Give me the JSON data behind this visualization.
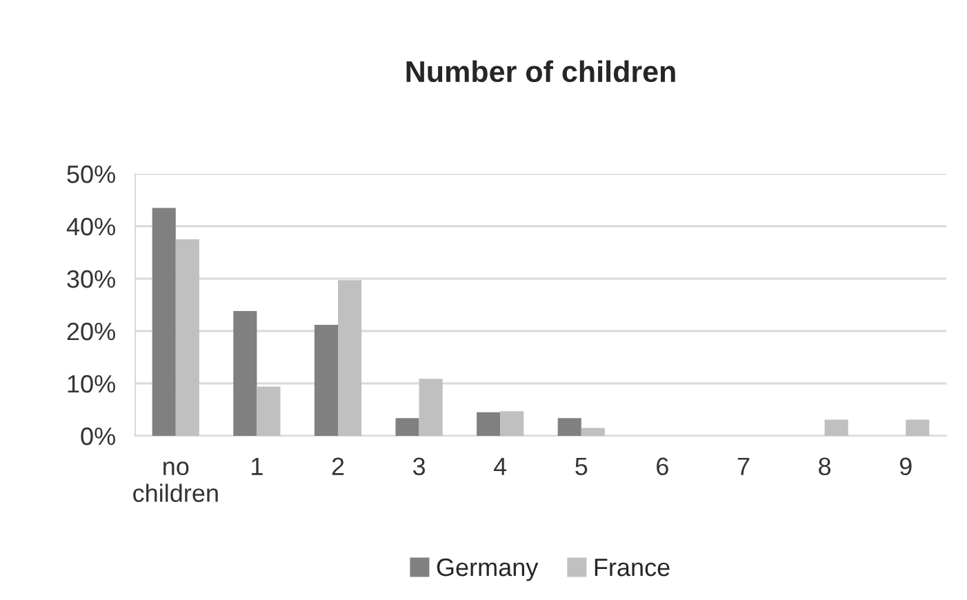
{
  "chart_data": {
    "type": "bar",
    "title": "Number of children",
    "categories": [
      "no\nchildren",
      "1",
      "2",
      "3",
      "4",
      "5",
      "6",
      "7",
      "8",
      "9"
    ],
    "series": [
      {
        "name": "Germany",
        "color": "#808080",
        "values": [
          43.5,
          23.8,
          21.2,
          3.4,
          4.5,
          3.4,
          null,
          null,
          null,
          null
        ]
      },
      {
        "name": "France",
        "color": "#c0c0c0",
        "values": [
          37.5,
          9.4,
          29.7,
          10.9,
          4.7,
          1.5,
          null,
          null,
          3.1,
          3.1
        ]
      }
    ],
    "ylim": [
      0,
      50
    ],
    "yticks": [
      {
        "value": 0,
        "label": "0%"
      },
      {
        "value": 10,
        "label": "10%"
      },
      {
        "value": 20,
        "label": "20%"
      },
      {
        "value": 30,
        "label": "30%"
      },
      {
        "value": 40,
        "label": "40%"
      },
      {
        "value": 50,
        "label": "50%"
      }
    ],
    "grid": "y",
    "legend": "bottom"
  }
}
